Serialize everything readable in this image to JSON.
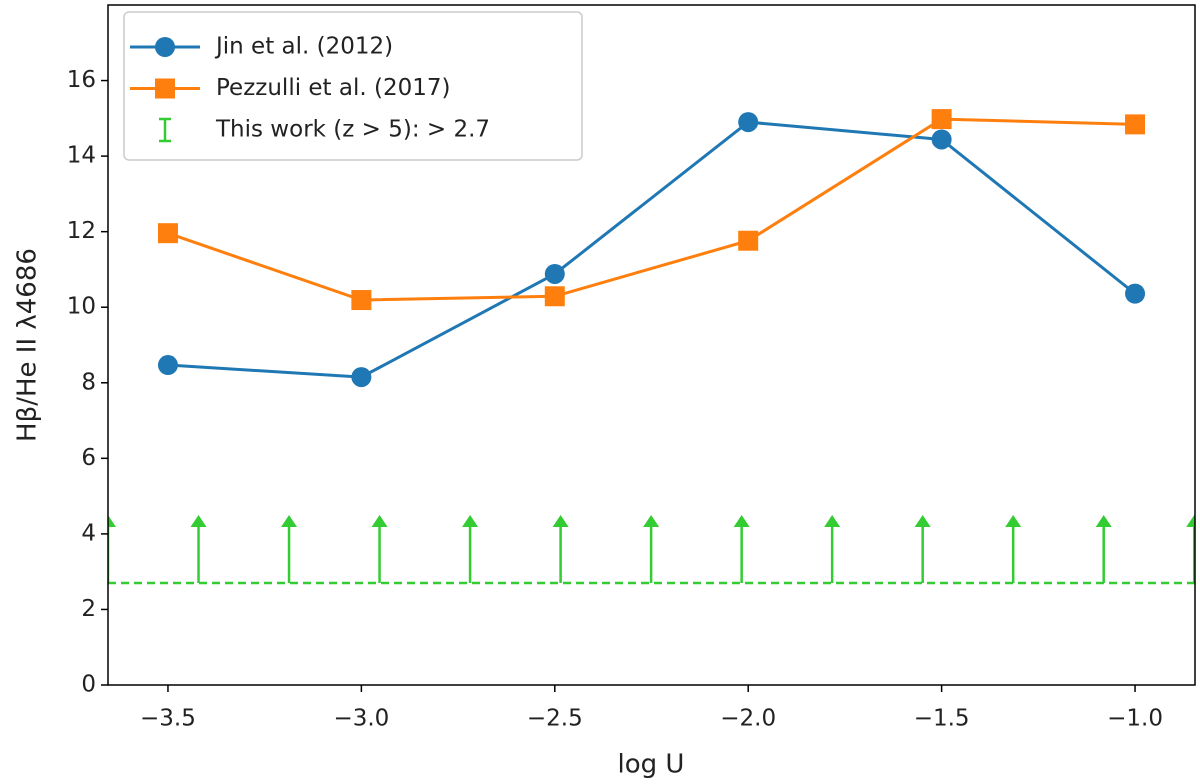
{
  "chart_data": {
    "type": "line",
    "xlabel": "log U",
    "ylabel": "Hβ/He II λ4686",
    "x": [
      -3.5,
      -3.0,
      -2.5,
      -2.0,
      -1.5,
      -1.0
    ],
    "series": [
      {
        "name": "Jin et al. (2012)",
        "color": "#1f77b4",
        "marker": "circle",
        "values": [
          8.47,
          8.15,
          10.88,
          14.9,
          14.44,
          10.36
        ]
      },
      {
        "name": "Pezzulli et al. (2017)",
        "color": "#ff7f0e",
        "marker": "square",
        "values": [
          11.96,
          10.19,
          10.29,
          11.76,
          14.98,
          14.84
        ]
      },
      {
        "name": "This work (z > 5): > 2.7",
        "color": "#33cc33",
        "marker": "lower-limit",
        "lower_limit": 2.7,
        "x": [
          -3.655,
          -3.421,
          -3.187,
          -2.953,
          -2.719,
          -2.485,
          -2.251,
          -2.017,
          -1.783,
          -1.549,
          -1.315,
          -1.081,
          -0.847
        ],
        "values": [
          2.7,
          2.7,
          2.7,
          2.7,
          2.7,
          2.7,
          2.7,
          2.7,
          2.7,
          2.7,
          2.7,
          2.7,
          2.7
        ],
        "arrow_length": 1.8
      }
    ],
    "xlim": [
      -3.655,
      -0.845
    ],
    "ylim": [
      0,
      18
    ],
    "xticks": [
      {
        "value": -3.5,
        "label": "−3.5"
      },
      {
        "value": -3.0,
        "label": "−3.0"
      },
      {
        "value": -2.5,
        "label": "−2.5"
      },
      {
        "value": -2.0,
        "label": "−2.0"
      },
      {
        "value": -1.5,
        "label": "−1.5"
      },
      {
        "value": -1.0,
        "label": "−1.0"
      }
    ],
    "yticks": [
      0,
      2,
      4,
      6,
      8,
      10,
      12,
      14,
      16
    ],
    "legend": "upper-left"
  }
}
